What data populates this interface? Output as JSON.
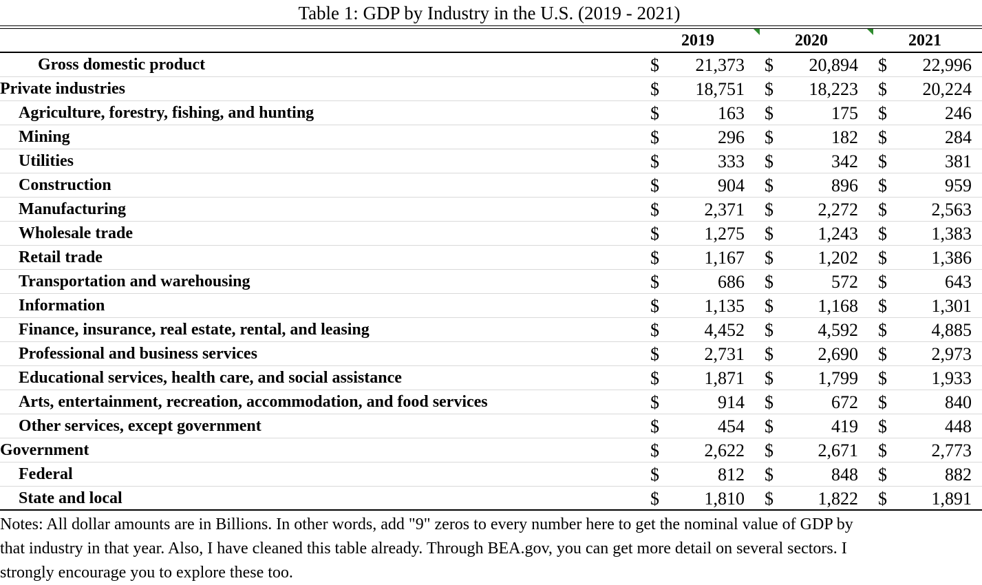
{
  "title": "Table 1: GDP by Industry in the U.S. (2019 - 2021)",
  "colors": {
    "text": "#000000",
    "rule": "#000000",
    "row_divider": "#d9d9d9",
    "comment_flag": "#2e8b2e"
  },
  "years": [
    "2019",
    "2020",
    "2021"
  ],
  "currency_symbol": "$",
  "rows": [
    {
      "label": "Gross domestic product",
      "indent": 2,
      "values": [
        "21,373",
        "20,894",
        "22,996"
      ]
    },
    {
      "label": "Private industries",
      "indent": 0,
      "values": [
        "18,751",
        "18,223",
        "20,224"
      ]
    },
    {
      "label": "Agriculture, forestry, fishing, and hunting",
      "indent": 1,
      "values": [
        "163",
        "175",
        "246"
      ]
    },
    {
      "label": "Mining",
      "indent": 1,
      "values": [
        "296",
        "182",
        "284"
      ]
    },
    {
      "label": "Utilities",
      "indent": 1,
      "values": [
        "333",
        "342",
        "381"
      ]
    },
    {
      "label": "Construction",
      "indent": 1,
      "values": [
        "904",
        "896",
        "959"
      ]
    },
    {
      "label": "Manufacturing",
      "indent": 1,
      "values": [
        "2,371",
        "2,272",
        "2,563"
      ]
    },
    {
      "label": "Wholesale trade",
      "indent": 1,
      "values": [
        "1,275",
        "1,243",
        "1,383"
      ]
    },
    {
      "label": "Retail trade",
      "indent": 1,
      "values": [
        "1,167",
        "1,202",
        "1,386"
      ]
    },
    {
      "label": "Transportation and warehousing",
      "indent": 1,
      "values": [
        "686",
        "572",
        "643"
      ]
    },
    {
      "label": "Information",
      "indent": 1,
      "values": [
        "1,135",
        "1,168",
        "1,301"
      ]
    },
    {
      "label": "Finance, insurance, real estate, rental, and leasing",
      "indent": 1,
      "values": [
        "4,452",
        "4,592",
        "4,885"
      ]
    },
    {
      "label": "Professional and business services",
      "indent": 1,
      "values": [
        "2,731",
        "2,690",
        "2,973"
      ]
    },
    {
      "label": "Educational services, health care, and social assistance",
      "indent": 1,
      "values": [
        "1,871",
        "1,799",
        "1,933"
      ]
    },
    {
      "label": "Arts, entertainment, recreation, accommodation, and food services",
      "indent": 1,
      "values": [
        "914",
        "672",
        "840"
      ]
    },
    {
      "label": "Other services, except government",
      "indent": 1,
      "values": [
        "454",
        "419",
        "448"
      ]
    },
    {
      "label": "Government",
      "indent": 0,
      "values": [
        "2,622",
        "2,671",
        "2,773"
      ]
    },
    {
      "label": "Federal",
      "indent": 1,
      "values": [
        "812",
        "848",
        "882"
      ]
    },
    {
      "label": "State and local",
      "indent": 1,
      "values": [
        "1,810",
        "1,822",
        "1,891"
      ]
    }
  ],
  "notes": [
    "Notes: All dollar amounts are in Billions. In other words, add \"9\" zeros to every number here to get the nominal value of GDP by",
    "that industry in that year. Also, I have cleaned this table already. Through BEA.gov, you can get more detail on several sectors. I",
    "strongly encourage you to explore these too."
  ]
}
